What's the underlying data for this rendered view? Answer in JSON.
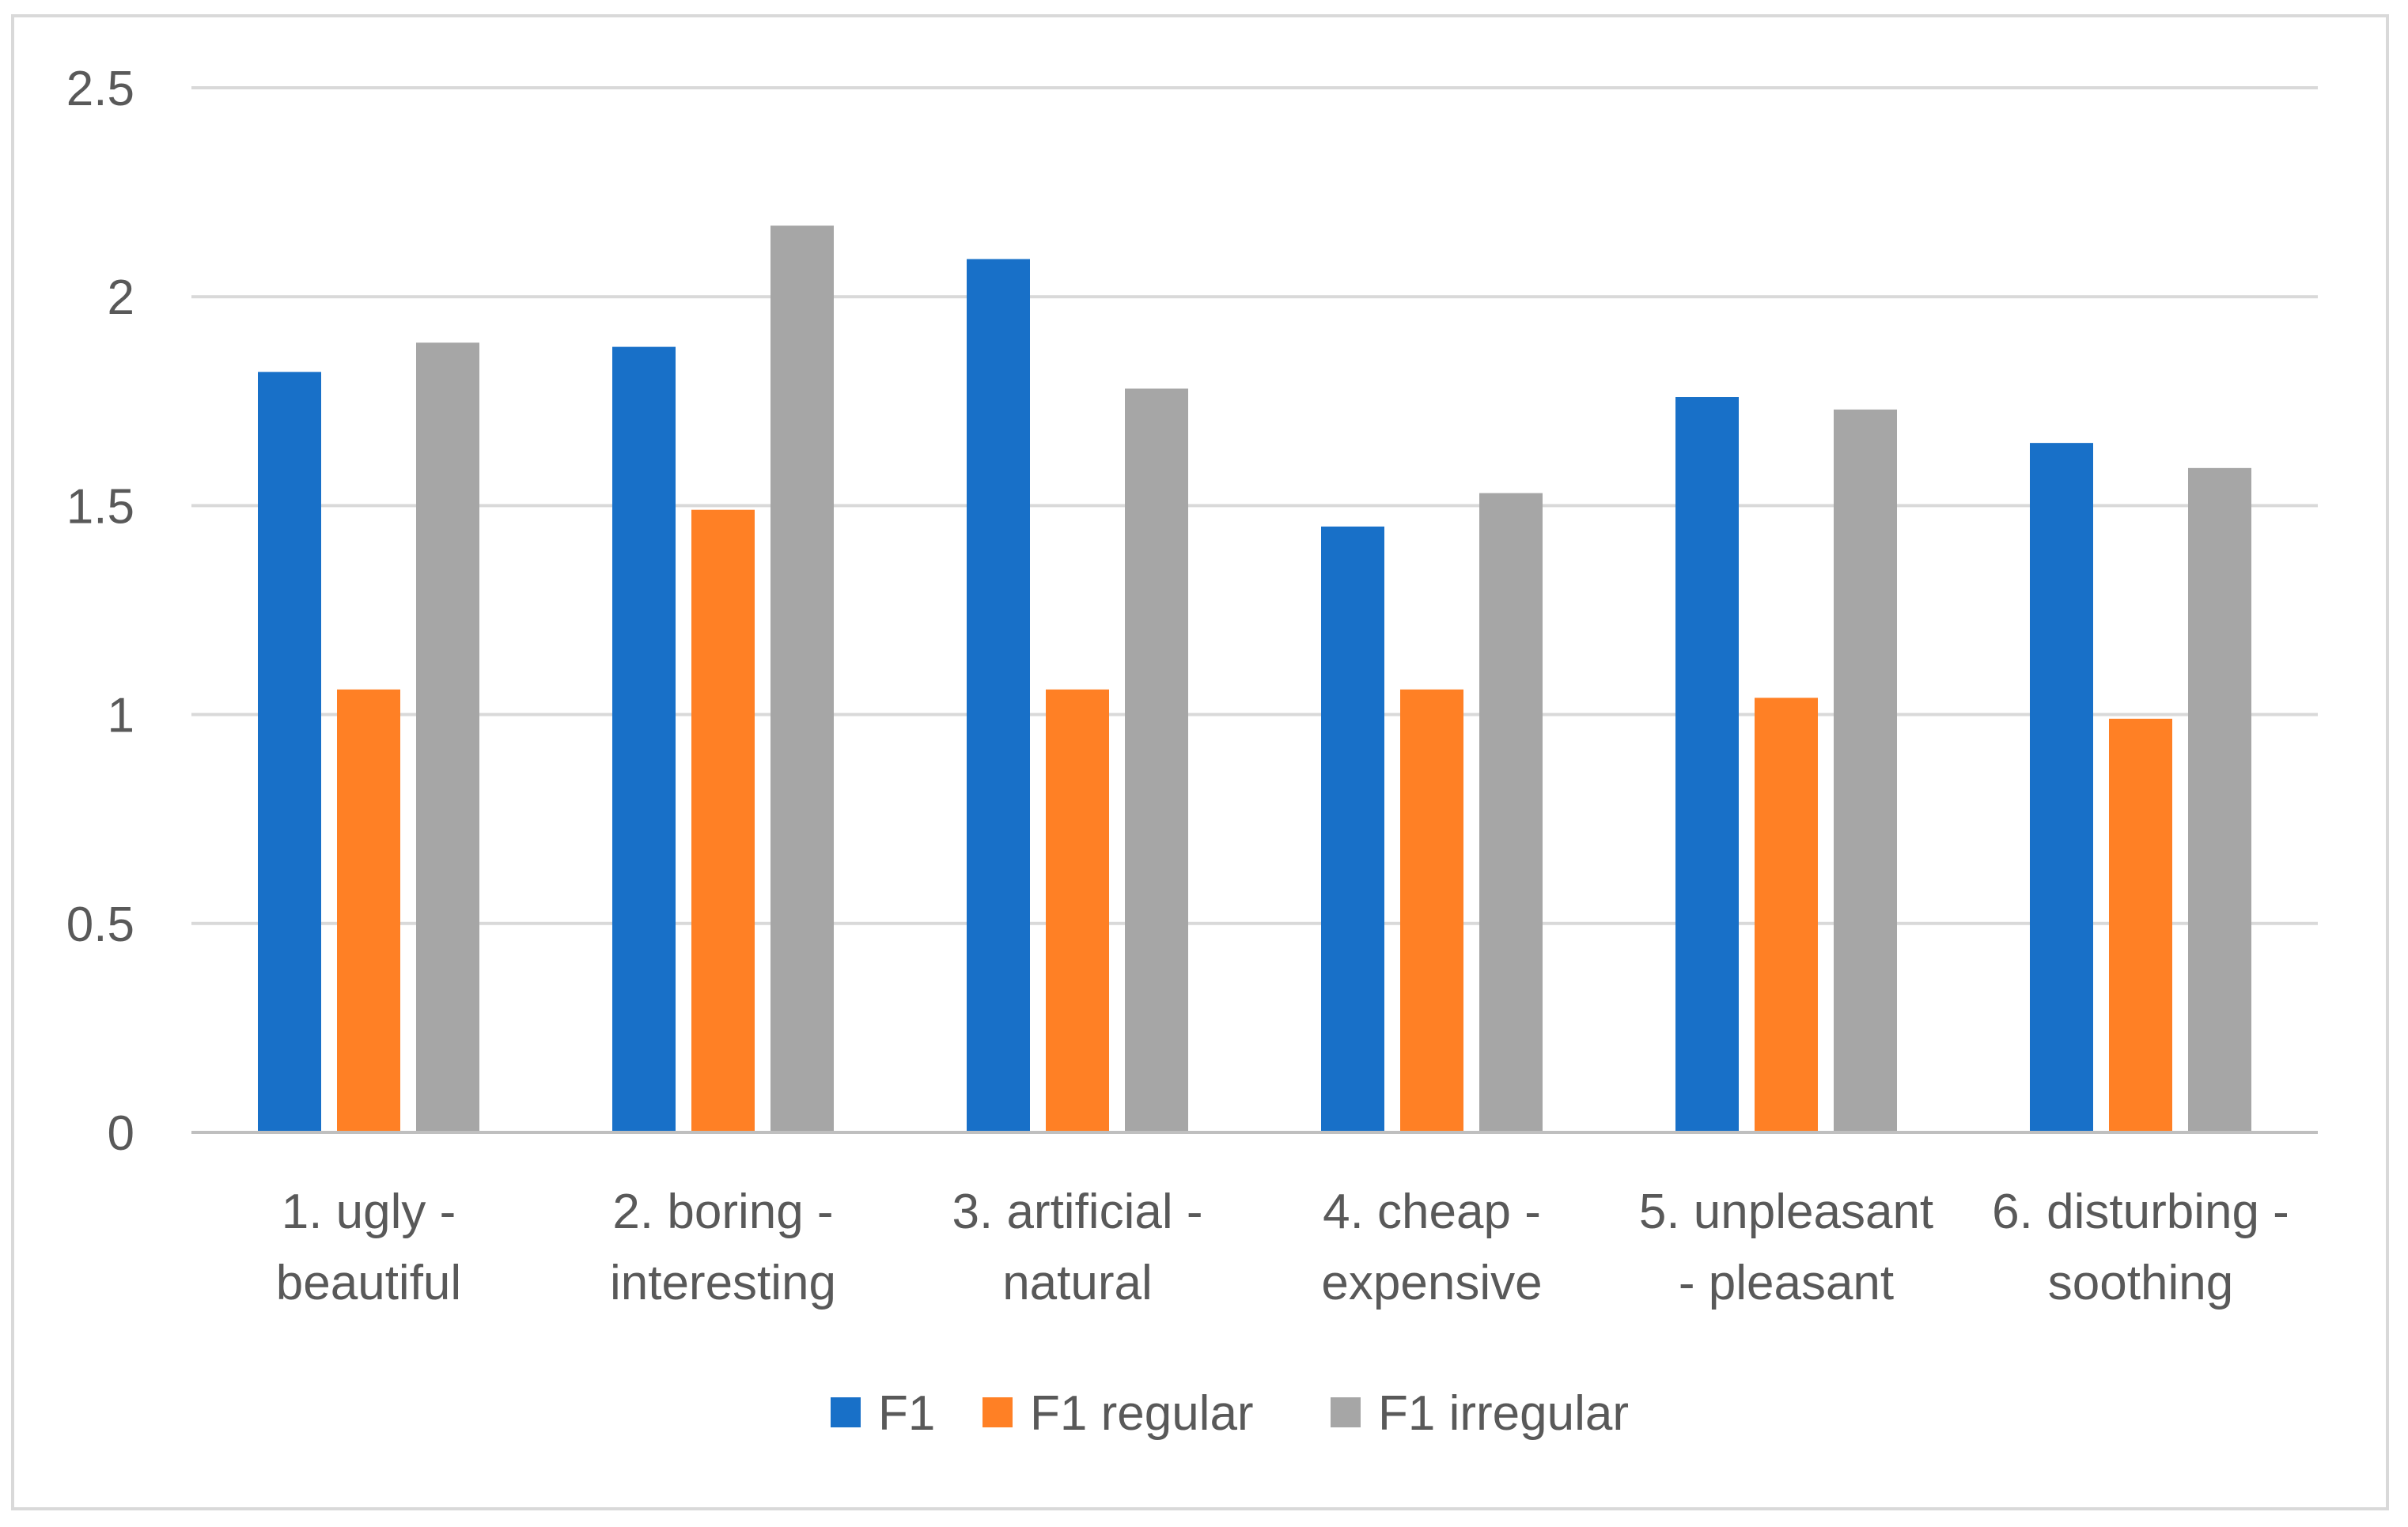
{
  "chart_data": {
    "type": "bar",
    "title": "",
    "xlabel": "",
    "ylabel": "",
    "ylim": [
      0,
      2.5
    ],
    "yticks": [
      0,
      0.5,
      1,
      1.5,
      2,
      2.5
    ],
    "ytick_labels": [
      "0",
      "0.5",
      "1",
      "1.5",
      "2",
      "2.5"
    ],
    "grid": true,
    "legend_position": "bottom",
    "categories": [
      [
        "1. ugly -",
        "beautiful"
      ],
      [
        "2. boring -",
        "interesting"
      ],
      [
        "3. artificial -",
        "natural"
      ],
      [
        "4. cheap -",
        "expensive"
      ],
      [
        "5. unpleasant",
        "- pleasant"
      ],
      [
        "6. disturbing  -",
        "soothing"
      ]
    ],
    "series": [
      {
        "name": "F1",
        "color": "#1870C8",
        "values": [
          1.82,
          1.88,
          2.09,
          1.45,
          1.76,
          1.65
        ]
      },
      {
        "name": "F1 regular",
        "color": "#FF8025",
        "values": [
          1.06,
          1.49,
          1.06,
          1.06,
          1.04,
          0.99
        ]
      },
      {
        "name": "F1 irregular",
        "color": "#A6A6A6",
        "values": [
          1.89,
          2.17,
          1.78,
          1.53,
          1.73,
          1.59
        ]
      }
    ],
    "gridline_color": "#d9d9d9",
    "axis_color": "#bfbfbf"
  }
}
